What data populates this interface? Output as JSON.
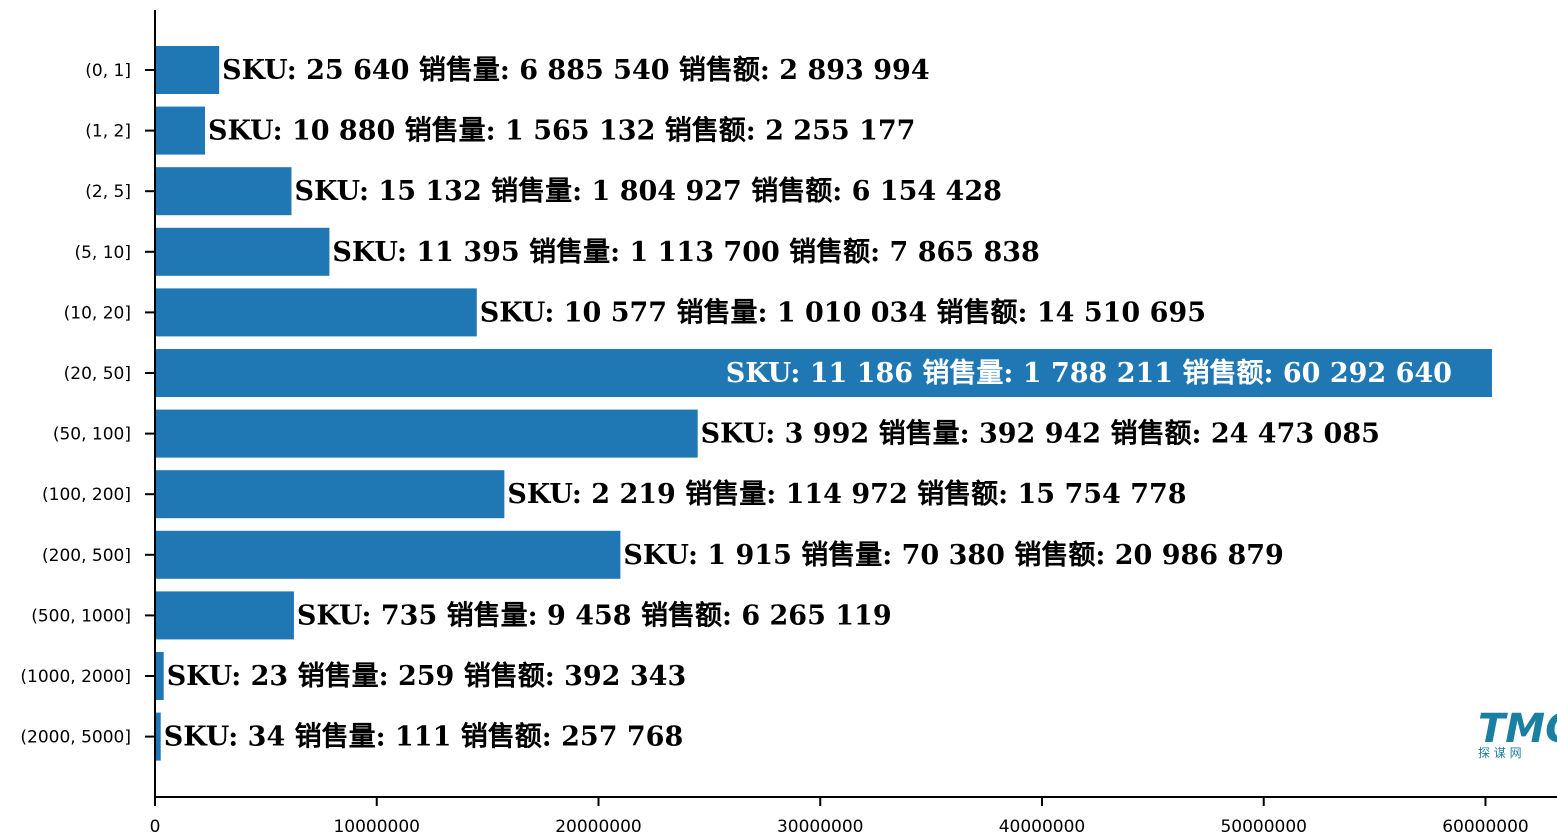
{
  "chart_data": {
    "type": "bar",
    "orientation": "horizontal",
    "categories": [
      "(0, 1]",
      "(1, 2]",
      "(2, 5]",
      "(5, 10]",
      "(10, 20]",
      "(20, 50]",
      "(50, 100]",
      "(100, 200]",
      "(200, 500]",
      "(500, 1000]",
      "(1000, 2000]",
      "(2000, 5000]"
    ],
    "values": [
      2893994,
      2255177,
      6154428,
      7865838,
      14510695,
      60292640,
      24473085,
      15754778,
      20986879,
      6265119,
      392343,
      257768
    ],
    "bar_labels": [
      "SKU: 25 640   销售量: 6 885 540   销售额: 2 893 994",
      "SKU: 10 880   销售量: 1 565 132   销售额: 2 255 177",
      "SKU: 15 132   销售量: 1 804 927   销售额: 6 154 428",
      "SKU: 11 395   销售量: 1 113 700   销售额: 7 865 838",
      "SKU: 10 577   销售量: 1 010 034   销售额: 14 510 695",
      "SKU: 11 186   销售量: 1 788 211   销售额: 60 292 640",
      "SKU: 3 992   销售量: 392 942   销售额: 24 473 085",
      "SKU: 2 219   销售量: 114 972   销售额: 15 754 778",
      "SKU: 1 915   销售量: 70 380   销售额: 20 986 879",
      "SKU: 735   销售量: 9 458   销售额: 6 265 119",
      "SKU: 23   销售量: 259   销售额: 392 343",
      "SKU: 34   销售量: 111   销售额: 257 768"
    ],
    "inside_label_index": 5,
    "x_ticks": [
      0,
      10000000,
      20000000,
      30000000,
      40000000,
      50000000,
      60000000
    ],
    "x_tick_labels": [
      "0",
      "10000000",
      "20000000",
      "30000000",
      "40000000",
      "50000000",
      "60000000"
    ],
    "xlim": [
      0,
      63000000
    ],
    "title": "",
    "xlabel": "",
    "ylabel": "",
    "grid": false,
    "colors": {
      "bar": "#1f77b4",
      "label_outside": "#000000",
      "label_inside": "#ffffff"
    }
  },
  "watermark": {
    "logo": "TMC",
    "subtitle": "探 谋 网",
    "color": "#1a7fa0"
  }
}
